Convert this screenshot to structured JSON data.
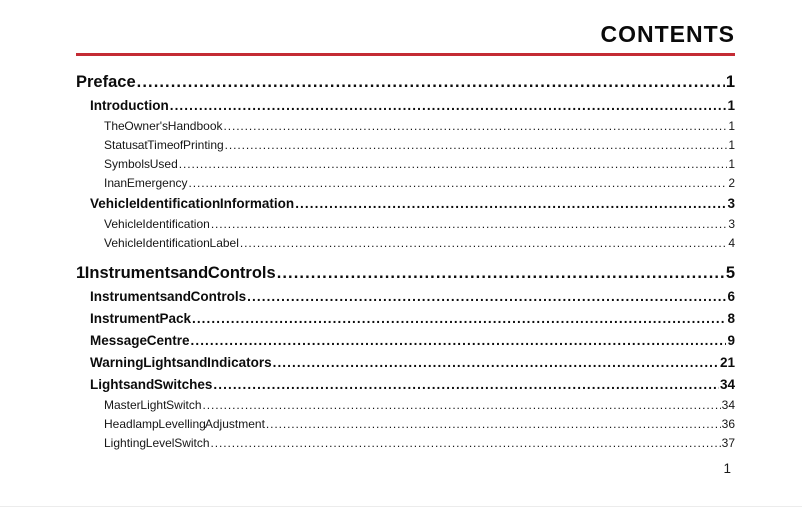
{
  "header": {
    "title": "CONTENTS",
    "accent_color": "#c42b34"
  },
  "toc": {
    "entries": [
      {
        "label": "Preface",
        "page": "1",
        "level": "h1"
      },
      {
        "label": "Introduction",
        "page": "1",
        "level": "h2"
      },
      {
        "label": "The Owner's Handbook",
        "page": "1",
        "level": "sub"
      },
      {
        "label": "Status at Time of Printing",
        "page": "1",
        "level": "sub"
      },
      {
        "label": "Symbols Used",
        "page": "1",
        "level": "sub"
      },
      {
        "label": "In an Emergency",
        "page": "2",
        "level": "sub"
      },
      {
        "label": "Vehicle Identification Information",
        "page": "3",
        "level": "h2"
      },
      {
        "label": "Vehicle Identification",
        "page": "3",
        "level": "sub"
      },
      {
        "label": "Vehicle Identification Label",
        "page": "4",
        "level": "sub"
      },
      {
        "label": "1 Instruments and Controls",
        "page": "5",
        "level": "h1"
      },
      {
        "label": "Instruments and Controls",
        "page": "6",
        "level": "h2"
      },
      {
        "label": "Instrument Pack",
        "page": "8",
        "level": "h2"
      },
      {
        "label": "Message Centre",
        "page": "9",
        "level": "h2"
      },
      {
        "label": "Warning Lights and Indicators",
        "page": "21",
        "level": "h2"
      },
      {
        "label": "Lights and Switches",
        "page": "34",
        "level": "h2"
      },
      {
        "label": "Master Light Switch",
        "page": "34",
        "level": "sub"
      },
      {
        "label": "Headlamp Levelling Adjustment",
        "page": "36",
        "level": "sub"
      },
      {
        "label": "Lighting Level Switch",
        "page": "37",
        "level": "sub"
      }
    ]
  },
  "footer": {
    "page_number": "1"
  }
}
